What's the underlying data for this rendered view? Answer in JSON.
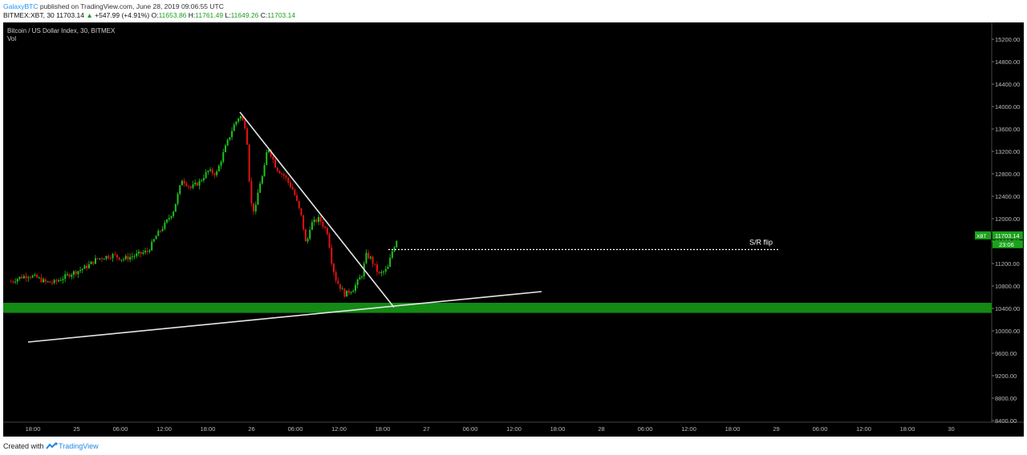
{
  "header": {
    "author": "GalaxyBTC",
    "published": "published on TradingView.com, June 28, 2019 09:06:55 UTC",
    "ticker": "BITMEX:XBT, 30",
    "last": "11703.14",
    "change_arrow": "▲",
    "change": "+547.99 (+4.91%)",
    "o_label": "O:",
    "o_value": "11653.86",
    "h_label": "H:",
    "h_value": "11761.49",
    "l_label": "L:",
    "l_value": "11649.26",
    "c_label": "C:",
    "c_value": "11703.14"
  },
  "footer": {
    "created_with": "Created with",
    "brand": "TradingView"
  },
  "colors": {
    "background": "#000000",
    "up": "#1ec21e",
    "down": "#e01414",
    "support_zone": "#138a13",
    "trendline": "#e6e6e6"
  },
  "chart_data": {
    "type": "candlestick",
    "title": "Bitcoin / US Dollar Index, 30, BITMEX",
    "subtitle": "Vol",
    "ylim": [
      8400,
      15400
    ],
    "y_ticks": [
      "15200.00",
      "14800.00",
      "14400.00",
      "14000.00",
      "13600.00",
      "13200.00",
      "12800.00",
      "12400.00",
      "12000.00",
      "11600.00",
      "11200.00",
      "10800.00",
      "10400.00",
      "10000.00",
      "9600.00",
      "9200.00",
      "8800.00",
      "8400.00"
    ],
    "x_ticks": [
      "18:00",
      "25",
      "06:00",
      "12:00",
      "18:00",
      "26",
      "06:00",
      "12:00",
      "18:00",
      "27",
      "06:00",
      "12:00",
      "18:00",
      "28",
      "06:00",
      "12:00",
      "18:00",
      "29",
      "06:00",
      "12:00",
      "18:00",
      "30"
    ],
    "price_tag_left": "XBT",
    "price_tag": "11703.14",
    "price_tag_countdown": "23:06",
    "annotations": [
      {
        "text": "S/R flip"
      }
    ],
    "levels": {
      "sr_flip": 11450,
      "support_zone": [
        10320,
        10500
      ]
    },
    "trendlines": [
      {
        "from": [
          "24 18:00",
          9800
        ],
        "to": [
          "29 18:00",
          10700
        ]
      },
      {
        "from": [
          "26 19:30",
          13900
        ],
        "to": [
          "28 07:30",
          10420
        ]
      }
    ],
    "close_path": [
      [
        "24 14:00",
        10880
      ],
      [
        "24 16:00",
        10950
      ],
      [
        "24 18:00",
        10990
      ],
      [
        "24 20:00",
        10950
      ],
      [
        "24 22:00",
        10870
      ],
      [
        "25 00:00",
        10860
      ],
      [
        "25 02:00",
        10940
      ],
      [
        "25 04:00",
        11020
      ],
      [
        "25 06:00",
        11080
      ],
      [
        "25 08:00",
        11160
      ],
      [
        "25 10:00",
        11280
      ],
      [
        "25 12:00",
        11320
      ],
      [
        "25 14:00",
        11350
      ],
      [
        "25 16:00",
        11280
      ],
      [
        "25 18:00",
        11320
      ],
      [
        "25 20:00",
        11370
      ],
      [
        "25 22:00",
        11420
      ],
      [
        "26 00:00",
        11700
      ],
      [
        "26 02:00",
        11900
      ],
      [
        "26 04:00",
        12150
      ],
      [
        "26 06:00",
        12700
      ],
      [
        "26 08:00",
        12550
      ],
      [
        "26 10:00",
        12650
      ],
      [
        "26 12:00",
        12850
      ],
      [
        "26 14:00",
        12800
      ],
      [
        "26 16:00",
        13250
      ],
      [
        "26 18:00",
        13650
      ],
      [
        "26 19:30",
        13850
      ],
      [
        "26 21:00",
        13600
      ],
      [
        "26 22:00",
        12300
      ],
      [
        "26 23:00",
        12100
      ],
      [
        "27 00:00",
        12600
      ],
      [
        "27 01:00",
        12800
      ],
      [
        "27 02:00",
        13300
      ],
      [
        "27 04:00",
        12900
      ],
      [
        "27 06:00",
        12750
      ],
      [
        "27 08:00",
        12500
      ],
      [
        "27 10:00",
        12000
      ],
      [
        "27 11:00",
        11500
      ],
      [
        "27 12:00",
        11900
      ],
      [
        "27 14:00",
        12000
      ],
      [
        "27 16:00",
        11750
      ],
      [
        "27 17:00",
        11200
      ],
      [
        "27 18:00",
        10900
      ],
      [
        "27 20:00",
        10650
      ],
      [
        "27 22:00",
        10750
      ],
      [
        "28 00:00",
        11000
      ],
      [
        "28 01:00",
        11350
      ],
      [
        "28 02:00",
        11300
      ],
      [
        "28 04:00",
        11000
      ],
      [
        "28 06:00",
        11100
      ],
      [
        "28 07:00",
        11400
      ],
      [
        "28 08:30",
        11703
      ]
    ]
  }
}
